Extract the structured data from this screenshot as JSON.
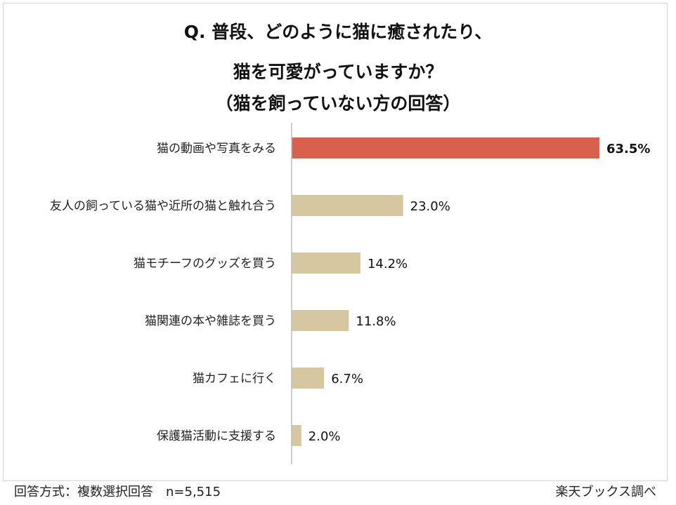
{
  "chart_data": {
    "type": "bar",
    "orientation": "horizontal",
    "title_lines": [
      "Q. 普段、どのように猫に癒されたり、",
      "猫を可愛がっていますか？",
      "（猫を飼っていない方の回答）"
    ],
    "categories": [
      "猫の動画や写真をみる",
      "友人の飼っている猫や近所の猫と触れ合う",
      "猫モチーフのグッズを買う",
      "猫関連の本や雑誌を買う",
      "猫カフェに行く",
      "保護猫活動に支援する"
    ],
    "values": [
      63.5,
      23.0,
      14.2,
      11.8,
      6.7,
      2.0
    ],
    "value_labels": [
      "63.5%",
      "23.0%",
      "14.2%",
      "11.8%",
      "6.7%",
      "2.0%"
    ],
    "unit": "%",
    "xlim": [
      0,
      75
    ],
    "highlight_index": 0,
    "grid": false,
    "xlabel": "",
    "ylabel": ""
  },
  "colors": {
    "highlight": "#d9604d",
    "bar": "#d7c7a0",
    "axis": "#bfbfbf"
  },
  "footer": {
    "method": "回答方式：複数選択回答　n=5,515",
    "source": "楽天ブックス調べ"
  }
}
